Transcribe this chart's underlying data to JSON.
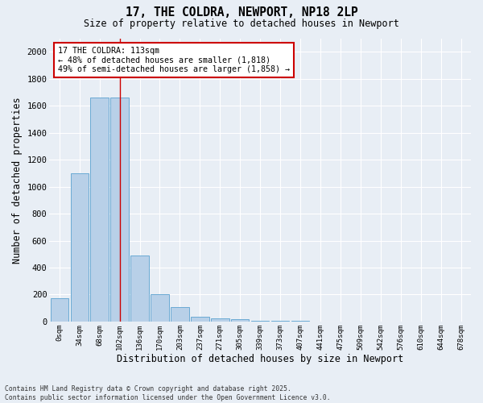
{
  "title_line1": "17, THE COLDRA, NEWPORT, NP18 2LP",
  "title_line2": "Size of property relative to detached houses in Newport",
  "xlabel": "Distribution of detached houses by size in Newport",
  "ylabel": "Number of detached properties",
  "bar_color": "#b8d0e8",
  "bar_edge_color": "#6aaad4",
  "background_color": "#e8eef5",
  "grid_color": "#ffffff",
  "categories": [
    "0sqm",
    "34sqm",
    "68sqm",
    "102sqm",
    "136sqm",
    "170sqm",
    "203sqm",
    "237sqm",
    "271sqm",
    "305sqm",
    "339sqm",
    "373sqm",
    "407sqm",
    "441sqm",
    "475sqm",
    "509sqm",
    "542sqm",
    "576sqm",
    "610sqm",
    "644sqm",
    "678sqm"
  ],
  "values": [
    175,
    1100,
    1660,
    1660,
    490,
    200,
    105,
    35,
    22,
    15,
    8,
    5,
    3,
    0,
    0,
    0,
    0,
    0,
    0,
    0,
    0
  ],
  "annotation_title": "17 THE COLDRA: 113sqm",
  "annotation_line2": "← 48% of detached houses are smaller (1,818)",
  "annotation_line3": "49% of semi-detached houses are larger (1,858) →",
  "vline_color": "#cc0000",
  "vline_x": 3.0,
  "annotation_box_facecolor": "#ffffff",
  "annotation_box_edgecolor": "#cc0000",
  "ylim": [
    0,
    2100
  ],
  "yticks": [
    0,
    200,
    400,
    600,
    800,
    1000,
    1200,
    1400,
    1600,
    1800,
    2000
  ],
  "footer_line1": "Contains HM Land Registry data © Crown copyright and database right 2025.",
  "footer_line2": "Contains public sector information licensed under the Open Government Licence v3.0."
}
